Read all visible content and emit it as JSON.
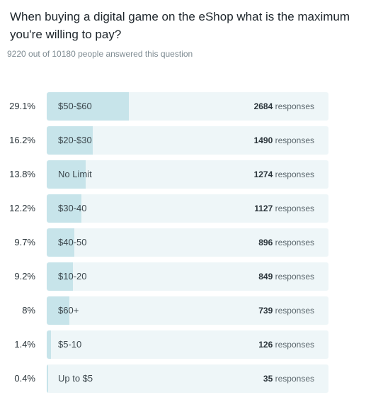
{
  "question": "When buying a digital game on the eShop what is the maximum you're willing to pay?",
  "meta_text": "9220 out of 10180 people answered this question",
  "colors": {
    "track": "#eef6f8",
    "fill": "#c7e4ea"
  },
  "chart_data": {
    "type": "bar",
    "orientation": "horizontal",
    "categories": [
      "$50-$60",
      "$20-$30",
      "No Limit",
      "$30-40",
      "$40-50",
      "$10-20",
      "$60+",
      "$5-10",
      "Up to $5"
    ],
    "percent_labels": [
      "29.1%",
      "16.2%",
      "13.8%",
      "12.2%",
      "9.7%",
      "9.2%",
      "8%",
      "1.4%",
      "0.4%"
    ],
    "percentages": [
      29.1,
      16.2,
      13.8,
      12.2,
      9.7,
      9.2,
      8,
      1.4,
      0.4
    ],
    "responses": [
      2684,
      1490,
      1274,
      1127,
      896,
      849,
      739,
      126,
      35
    ],
    "response_unit": "responses"
  }
}
